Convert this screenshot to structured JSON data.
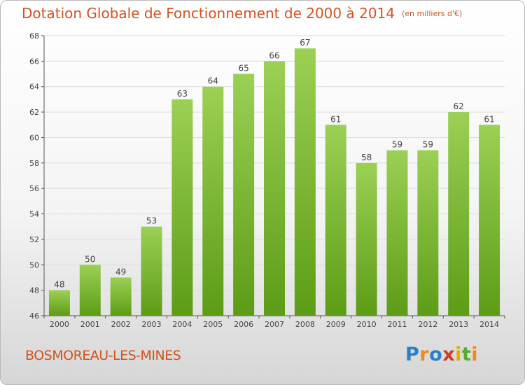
{
  "header": {
    "title": "Dotation Globale de Fonctionnement de 2000 à 2014",
    "unit": "(en milliers d'€)"
  },
  "footer": {
    "commune": "BOSMOREAU-LES-MINES",
    "logo": "Proxiti"
  },
  "colors": {
    "title": "#d3521e",
    "bar_top": "#9bd055",
    "bar_bottom": "#5d9c16",
    "grid": "#dddddd"
  },
  "chart_data": {
    "type": "bar",
    "title": "Dotation Globale de Fonctionnement de 2000 à 2014",
    "subtitle": "(en milliers d'€)",
    "categories": [
      "2000",
      "2001",
      "2002",
      "2003",
      "2004",
      "2005",
      "2006",
      "2007",
      "2008",
      "2009",
      "2010",
      "2011",
      "2012",
      "2013",
      "2014"
    ],
    "values": [
      48,
      50,
      49,
      53,
      63,
      64,
      65,
      66,
      67,
      61,
      58,
      59,
      59,
      62,
      61
    ],
    "ylim": [
      46,
      68
    ],
    "yticks": [
      46,
      48,
      50,
      52,
      54,
      56,
      58,
      60,
      62,
      64,
      66,
      68
    ],
    "grid": true,
    "legend": "none",
    "data_labels": true
  }
}
